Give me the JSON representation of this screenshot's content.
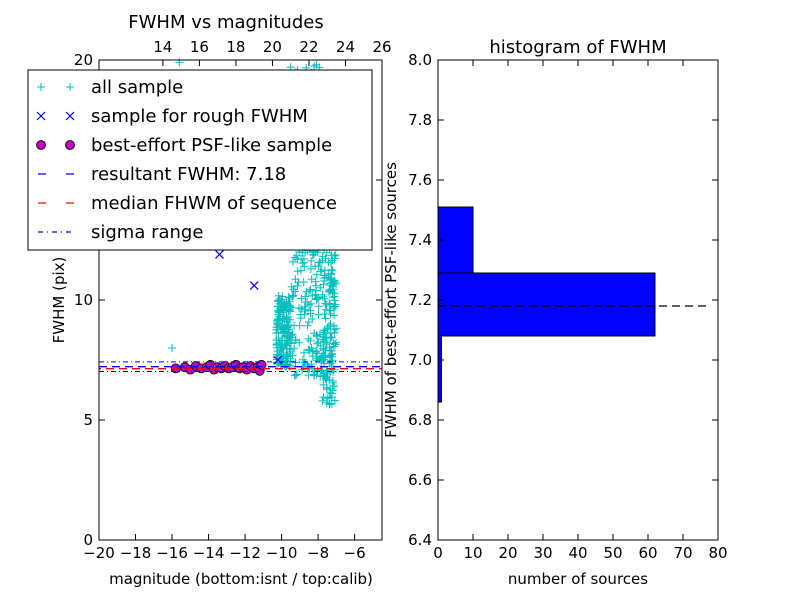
{
  "chart_data": [
    {
      "type": "scatter",
      "title": "FWHM vs magnitudes",
      "xlabel": "magnitude (bottom:isnt / top:calib)",
      "ylabel": "FWHM (pix)",
      "xlim": [
        -20,
        -4.5
      ],
      "ylim": [
        0,
        20
      ],
      "xticks": [
        -20,
        -18,
        -16,
        -14,
        -12,
        -10,
        -8,
        -6
      ],
      "xtick_labels": [
        "−20",
        "−18",
        "−16",
        "−14",
        "−12",
        "−10",
        "−8",
        "−6"
      ],
      "yticks": [
        0,
        5,
        10,
        15,
        20
      ],
      "ytick_labels": [
        "0",
        "5",
        "10",
        "15",
        "20"
      ],
      "top_axis": {
        "ticks": [
          14,
          16,
          18,
          20,
          22,
          24,
          26
        ],
        "labels": [
          "14",
          "16",
          "18",
          "20",
          "22",
          "24",
          "26"
        ],
        "offset": 30.5
      },
      "grid": false,
      "legend_placement": "top",
      "legend": [
        {
          "label": "all sample",
          "marker": "plus",
          "color": "#00bfbf"
        },
        {
          "label": "sample for rough FWHM",
          "marker": "x",
          "color": "#0000ff"
        },
        {
          "label": "best-effort PSF-like sample",
          "marker": "circle",
          "color": "#bf00bf"
        },
        {
          "label": "resultant FWHM: 7.18",
          "marker": "dashed",
          "color": "#0000ff"
        },
        {
          "label": "median FHWM of sequence",
          "marker": "dashed",
          "color": "#ff0000"
        },
        {
          "label": "sigma range",
          "marker": "dashdot",
          "color": "#0000ff"
        }
      ],
      "hlines": {
        "resultant": 7.18,
        "median": 7.18,
        "sigma_low": 7.02,
        "sigma_high": 7.42
      },
      "rough_points": [
        {
          "x": -13.4,
          "y": 11.9
        },
        {
          "x": -11.5,
          "y": 10.6
        },
        {
          "x": -10.2,
          "y": 7.5
        }
      ],
      "psf_points": [
        {
          "x": -15.8,
          "y": 7.15
        },
        {
          "x": -15.3,
          "y": 7.2
        },
        {
          "x": -15.0,
          "y": 7.1
        },
        {
          "x": -14.7,
          "y": 7.25
        },
        {
          "x": -14.4,
          "y": 7.15
        },
        {
          "x": -14.1,
          "y": 7.2
        },
        {
          "x": -13.9,
          "y": 7.3
        },
        {
          "x": -13.7,
          "y": 7.1
        },
        {
          "x": -13.5,
          "y": 7.2
        },
        {
          "x": -13.3,
          "y": 7.15
        },
        {
          "x": -13.1,
          "y": 7.25
        },
        {
          "x": -12.9,
          "y": 7.15
        },
        {
          "x": -12.7,
          "y": 7.2
        },
        {
          "x": -12.5,
          "y": 7.3
        },
        {
          "x": -12.3,
          "y": 7.15
        },
        {
          "x": -12.1,
          "y": 7.2
        },
        {
          "x": -11.9,
          "y": 7.1
        },
        {
          "x": -11.7,
          "y": 7.25
        },
        {
          "x": -11.5,
          "y": 7.15
        },
        {
          "x": -11.3,
          "y": 7.2
        },
        {
          "x": -11.2,
          "y": 7.05
        },
        {
          "x": -11.1,
          "y": 7.3
        }
      ],
      "all_sample_description": "dense cloud between x -10.5 and -7, FWHM 5.5 to 20",
      "all_sample_points": [
        {
          "x": -16.0,
          "y": 8.0
        },
        {
          "x": -15.6,
          "y": 19.9
        },
        {
          "x": -12.9,
          "y": 14.3
        },
        {
          "x": -9.5,
          "y": 19.7
        },
        {
          "x": -8.1,
          "y": 19.8
        },
        {
          "x": -15.5,
          "y": 7.2
        },
        {
          "x": -12.0,
          "y": 7.2
        },
        {
          "x": -11.0,
          "y": 7.3
        }
      ]
    },
    {
      "type": "bar",
      "orientation": "horizontal",
      "title": "histogram of FWHM",
      "xlabel": "number of sources",
      "ylabel": "FWHM of best-effort PSF-like sources",
      "xlim": [
        0,
        80
      ],
      "ylim": [
        6.4,
        8.0
      ],
      "xticks": [
        0,
        10,
        20,
        30,
        40,
        50,
        60,
        70,
        80
      ],
      "xtick_labels": [
        "0",
        "10",
        "20",
        "30",
        "40",
        "50",
        "60",
        "70",
        "80"
      ],
      "yticks": [
        6.4,
        6.6,
        6.8,
        7.0,
        7.2,
        7.4,
        7.6,
        7.8,
        8.0
      ],
      "ytick_labels": [
        "6.4",
        "6.6",
        "6.8",
        "7.0",
        "7.2",
        "7.4",
        "7.6",
        "7.8",
        "8.0"
      ],
      "bars": [
        {
          "y0": 6.86,
          "y1": 7.08,
          "count": 1
        },
        {
          "y0": 7.08,
          "y1": 7.29,
          "count": 62
        },
        {
          "y0": 7.29,
          "y1": 7.51,
          "count": 10
        }
      ],
      "hline": {
        "y": 7.18,
        "x_end": 77
      },
      "bar_color": "#0000ff",
      "grid": false
    }
  ]
}
